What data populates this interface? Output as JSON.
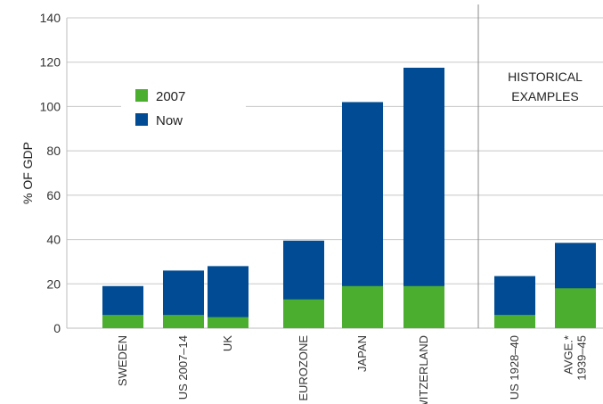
{
  "chart_data": {
    "type": "bar",
    "stacked": true,
    "ylabel": "% OF GDP",
    "ylim": [
      0,
      140
    ],
    "yticks": [
      0,
      20,
      40,
      60,
      80,
      100,
      120,
      140
    ],
    "grid": true,
    "legend_position": "top-left",
    "categories": [
      [
        "SWEDEN"
      ],
      [
        "US 2007–14"
      ],
      [
        "UK"
      ],
      [
        "EUROZONE"
      ],
      [
        "JAPAN"
      ],
      [
        "SWITZERLAND"
      ],
      [
        "US 1928–40"
      ],
      [
        "AVGE.*",
        "1939–45"
      ]
    ],
    "group_label": [
      "HISTORICAL",
      "EXAMPLES"
    ],
    "series": [
      {
        "name": "2007",
        "color": "#4cae2e",
        "values": [
          6,
          6,
          5,
          13,
          19,
          19,
          6,
          18
        ]
      },
      {
        "name": "Now",
        "color": "#004b93",
        "values": [
          19,
          26,
          28,
          39.5,
          102,
          117.5,
          23.5,
          38.5
        ]
      }
    ]
  }
}
